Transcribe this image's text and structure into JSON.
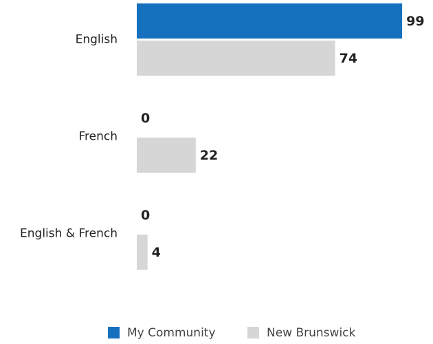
{
  "chart_data": {
    "type": "bar",
    "orientation": "horizontal",
    "categories": [
      "English",
      "French",
      "English & French"
    ],
    "series": [
      {
        "name": "My Community",
        "color": "#1570be",
        "values": [
          99,
          0,
          0
        ]
      },
      {
        "name": "New Brunswick",
        "color": "#d6d6d6",
        "values": [
          74,
          22,
          4
        ]
      }
    ],
    "xlim": [
      0,
      100
    ],
    "legend": "bottom"
  }
}
